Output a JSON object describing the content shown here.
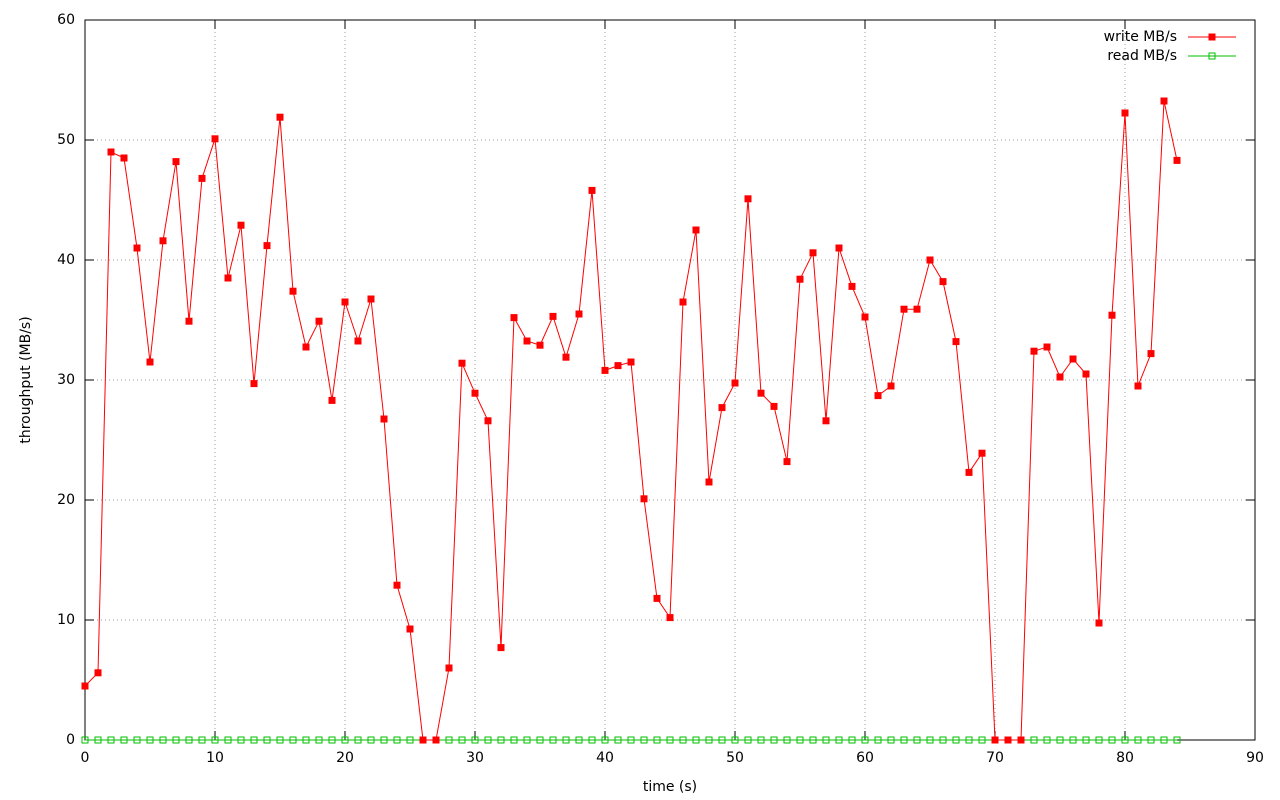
{
  "chart_data": {
    "type": "line",
    "x_label": "time (s)",
    "y_label": "throughput (MB/s)",
    "x": [
      0,
      1,
      2,
      3,
      4,
      5,
      6,
      7,
      8,
      9,
      10,
      11,
      12,
      13,
      14,
      15,
      16,
      17,
      18,
      19,
      20,
      21,
      22,
      23,
      24,
      25,
      26,
      27,
      28,
      29,
      30,
      31,
      32,
      33,
      34,
      35,
      36,
      37,
      38,
      39,
      40,
      41,
      42,
      43,
      44,
      45,
      46,
      47,
      48,
      49,
      50,
      51,
      52,
      53,
      54,
      55,
      56,
      57,
      58,
      59,
      60,
      61,
      62,
      63,
      64,
      65,
      66,
      67,
      68,
      69,
      70,
      71,
      72,
      73,
      74,
      75,
      76,
      77,
      78,
      79,
      80,
      81,
      82,
      83,
      84
    ],
    "series": [
      {
        "name": "write MB/s",
        "color": "#ff0000",
        "marker": "filled",
        "values": [
          4.5,
          5.6,
          49,
          48.5,
          41,
          31.5,
          41.6,
          48.2,
          34.9,
          46.8,
          50.1,
          38.5,
          42.9,
          29.7,
          41.2,
          51.9,
          37.4,
          32.75,
          34.9,
          28.3,
          36.5,
          33.25,
          36.75,
          26.75,
          12.9,
          9.25,
          0,
          0,
          6,
          31.4,
          28.9,
          26.6,
          7.7,
          35.2,
          33.25,
          32.9,
          35.3,
          31.9,
          35.5,
          45.8,
          30.8,
          31.2,
          31.5,
          20.1,
          11.8,
          10.2,
          36.5,
          42.5,
          21.5,
          27.7,
          29.75,
          45.1,
          28.9,
          27.8,
          23.2,
          38.4,
          40.6,
          26.6,
          41,
          37.8,
          35.25,
          28.7,
          29.5,
          35.9,
          35.9,
          40,
          38.2,
          33.2,
          22.3,
          23.9,
          0,
          0,
          0,
          32.4,
          32.75,
          30.25,
          31.75,
          30.5,
          9.75,
          35.4,
          52.25,
          29.5,
          32.2,
          53.25,
          48.3
        ]
      },
      {
        "name": "read MB/s",
        "color": "#00c000",
        "marker": "open",
        "values": [
          0,
          0,
          0,
          0,
          0,
          0,
          0,
          0,
          0,
          0,
          0,
          0,
          0,
          0,
          0,
          0,
          0,
          0,
          0,
          0,
          0,
          0,
          0,
          0,
          0,
          0,
          0,
          0,
          0,
          0,
          0,
          0,
          0,
          0,
          0,
          0,
          0,
          0,
          0,
          0,
          0,
          0,
          0,
          0,
          0,
          0,
          0,
          0,
          0,
          0,
          0,
          0,
          0,
          0,
          0,
          0,
          0,
          0,
          0,
          0,
          0,
          0,
          0,
          0,
          0,
          0,
          0,
          0,
          0,
          0,
          0,
          0,
          0,
          0,
          0,
          0,
          0,
          0,
          0,
          0,
          0,
          0,
          0,
          0,
          0
        ]
      }
    ],
    "xlim": [
      0,
      90
    ],
    "xticks": [
      0,
      10,
      20,
      30,
      40,
      50,
      60,
      70,
      80,
      90
    ],
    "ylim": [
      0,
      60
    ],
    "yticks": [
      0,
      10,
      20,
      30,
      40,
      50,
      60
    ],
    "grid": true,
    "legend": "top-right"
  }
}
